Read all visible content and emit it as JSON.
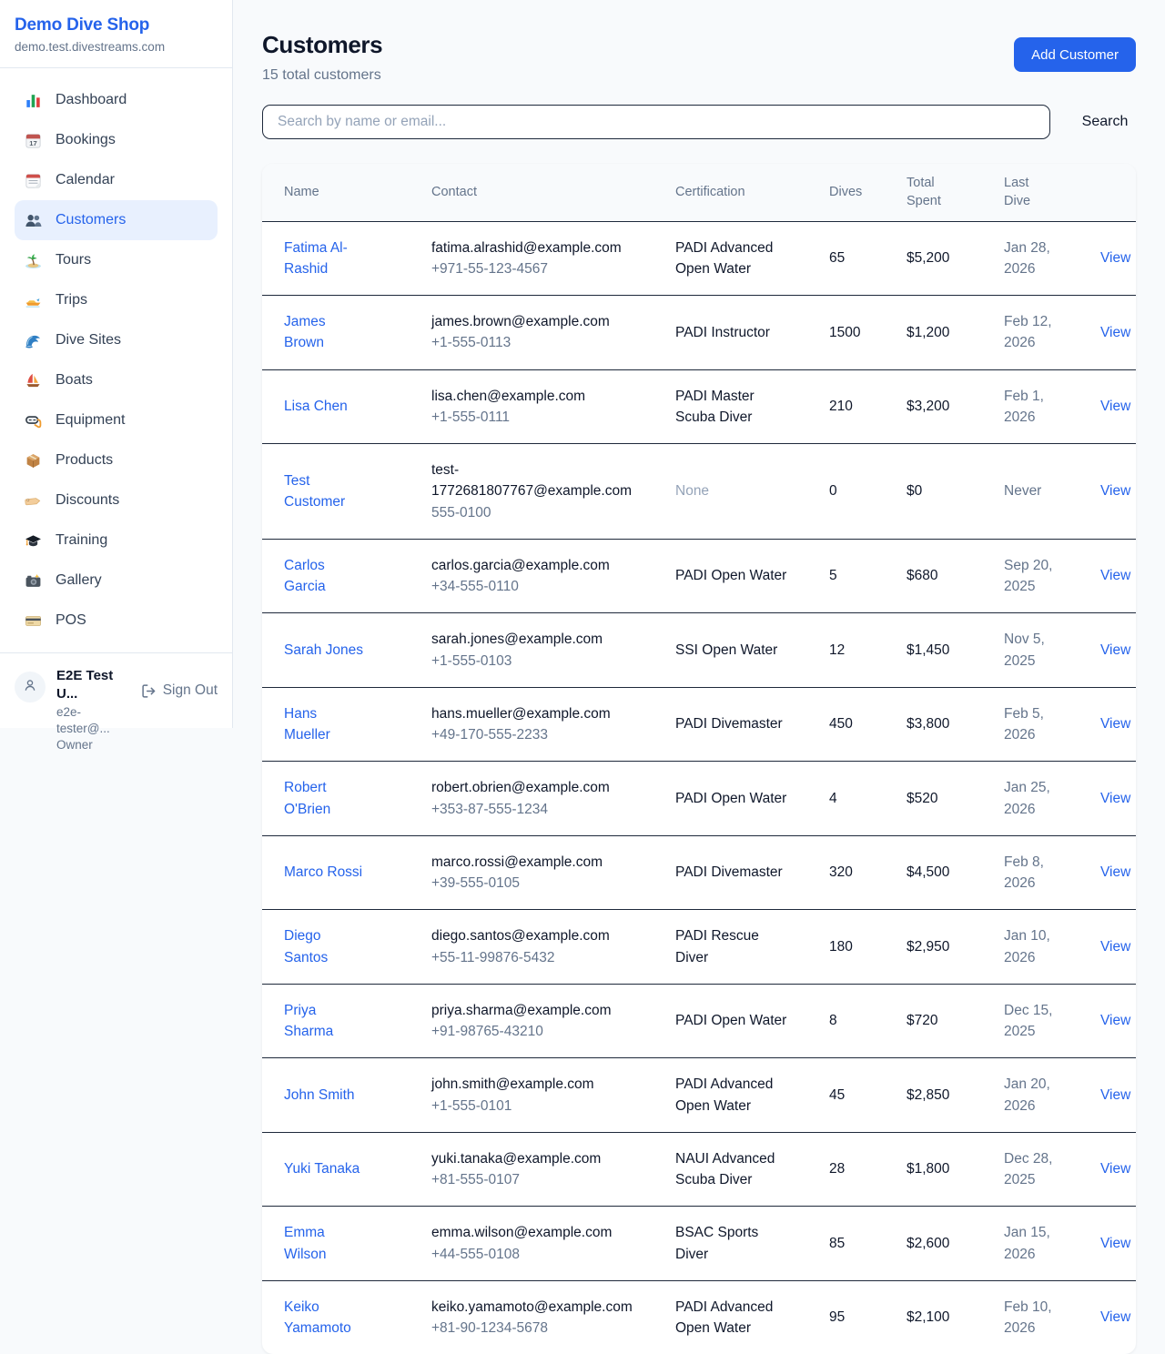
{
  "sidebar": {
    "shop_name": "Demo Dive Shop",
    "shop_domain": "demo.test.divestreams.com",
    "items": [
      {
        "label": "Dashboard",
        "icon": "dashboard-icon",
        "active": false
      },
      {
        "label": "Bookings",
        "icon": "bookings-calendar-icon",
        "active": false
      },
      {
        "label": "Calendar",
        "icon": "calendar-icon",
        "active": false
      },
      {
        "label": "Customers",
        "icon": "customers-icon",
        "active": true
      },
      {
        "label": "Tours",
        "icon": "tours-island-icon",
        "active": false
      },
      {
        "label": "Trips",
        "icon": "trips-boat-icon",
        "active": false
      },
      {
        "label": "Dive Sites",
        "icon": "dive-sites-wave-icon",
        "active": false
      },
      {
        "label": "Boats",
        "icon": "boats-sailboat-icon",
        "active": false
      },
      {
        "label": "Equipment",
        "icon": "equipment-mask-icon",
        "active": false
      },
      {
        "label": "Products",
        "icon": "products-box-icon",
        "active": false
      },
      {
        "label": "Discounts",
        "icon": "discounts-tag-icon",
        "active": false
      },
      {
        "label": "Training",
        "icon": "training-cap-icon",
        "active": false
      },
      {
        "label": "Gallery",
        "icon": "gallery-camera-icon",
        "active": false
      },
      {
        "label": "POS",
        "icon": "pos-card-icon",
        "active": false
      }
    ],
    "user": {
      "name": "E2E Test U...",
      "email": "e2e-tester@...",
      "role": "Owner",
      "sign_out_label": "Sign Out"
    }
  },
  "header": {
    "title": "Customers",
    "subtitle": "15 total customers",
    "add_button_label": "Add Customer"
  },
  "search": {
    "placeholder": "Search by name or email...",
    "button_label": "Search"
  },
  "table": {
    "columns": [
      "Name",
      "Contact",
      "Certification",
      "Dives",
      "Total\nSpent",
      "Last\nDive",
      ""
    ],
    "rows": [
      {
        "name": "Fatima Al-\nRashid",
        "email": "fatima.alrashid@example.com",
        "phone": "+971-55-123-4567",
        "certification": "PADI Advanced\nOpen Water",
        "dives": "65",
        "total_spent": "$5,200",
        "last_dive": "Jan 28,\n2026",
        "action": "View"
      },
      {
        "name": "James\nBrown",
        "email": "james.brown@example.com",
        "phone": "+1-555-0113",
        "certification": "PADI Instructor",
        "dives": "1500",
        "total_spent": "$1,200",
        "last_dive": "Feb 12,\n2026",
        "action": "View"
      },
      {
        "name": "Lisa Chen",
        "email": "lisa.chen@example.com",
        "phone": "+1-555-0111",
        "certification": "PADI Master\nScuba Diver",
        "dives": "210",
        "total_spent": "$3,200",
        "last_dive": "Feb 1,\n2026",
        "action": "View"
      },
      {
        "name": "Test\nCustomer",
        "email": "test-\n1772681807767@example.com",
        "phone": "555-0100",
        "certification": "None",
        "dives": "0",
        "total_spent": "$0",
        "last_dive": "Never",
        "action": "View"
      },
      {
        "name": "Carlos\nGarcia",
        "email": "carlos.garcia@example.com",
        "phone": "+34-555-0110",
        "certification": "PADI Open Water",
        "dives": "5",
        "total_spent": "$680",
        "last_dive": "Sep 20,\n2025",
        "action": "View"
      },
      {
        "name": "Sarah Jones",
        "email": "sarah.jones@example.com",
        "phone": "+1-555-0103",
        "certification": "SSI Open Water",
        "dives": "12",
        "total_spent": "$1,450",
        "last_dive": "Nov 5,\n2025",
        "action": "View"
      },
      {
        "name": "Hans\nMueller",
        "email": "hans.mueller@example.com",
        "phone": "+49-170-555-2233",
        "certification": "PADI Divemaster",
        "dives": "450",
        "total_spent": "$3,800",
        "last_dive": "Feb 5,\n2026",
        "action": "View"
      },
      {
        "name": "Robert\nO'Brien",
        "email": "robert.obrien@example.com",
        "phone": "+353-87-555-1234",
        "certification": "PADI Open Water",
        "dives": "4",
        "total_spent": "$520",
        "last_dive": "Jan 25,\n2026",
        "action": "View"
      },
      {
        "name": "Marco Rossi",
        "email": "marco.rossi@example.com",
        "phone": "+39-555-0105",
        "certification": "PADI Divemaster",
        "dives": "320",
        "total_spent": "$4,500",
        "last_dive": "Feb 8,\n2026",
        "action": "View"
      },
      {
        "name": "Diego\nSantos",
        "email": "diego.santos@example.com",
        "phone": "+55-11-99876-5432",
        "certification": "PADI Rescue\nDiver",
        "dives": "180",
        "total_spent": "$2,950",
        "last_dive": "Jan 10,\n2026",
        "action": "View"
      },
      {
        "name": "Priya\nSharma",
        "email": "priya.sharma@example.com",
        "phone": "+91-98765-43210",
        "certification": "PADI Open Water",
        "dives": "8",
        "total_spent": "$720",
        "last_dive": "Dec 15,\n2025",
        "action": "View"
      },
      {
        "name": "John Smith",
        "email": "john.smith@example.com",
        "phone": "+1-555-0101",
        "certification": "PADI Advanced\nOpen Water",
        "dives": "45",
        "total_spent": "$2,850",
        "last_dive": "Jan 20,\n2026",
        "action": "View"
      },
      {
        "name": "Yuki Tanaka",
        "email": "yuki.tanaka@example.com",
        "phone": "+81-555-0107",
        "certification": "NAUI Advanced\nScuba Diver",
        "dives": "28",
        "total_spent": "$1,800",
        "last_dive": "Dec 28,\n2025",
        "action": "View"
      },
      {
        "name": "Emma\nWilson",
        "email": "emma.wilson@example.com",
        "phone": "+44-555-0108",
        "certification": "BSAC Sports\nDiver",
        "dives": "85",
        "total_spent": "$2,600",
        "last_dive": "Jan 15,\n2026",
        "action": "View"
      },
      {
        "name": "Keiko\nYamamoto",
        "email": "keiko.yamamoto@example.com",
        "phone": "+81-90-1234-5678",
        "certification": "PADI Advanced\nOpen Water",
        "dives": "95",
        "total_spent": "$2,100",
        "last_dive": "Feb 10,\n2026",
        "action": "View"
      }
    ]
  },
  "colors": {
    "accent": "#2563eb",
    "active_nav_bg": "#e8f0fe",
    "page_bg": "#f8fafc",
    "row_border": "#1e293b",
    "muted_text": "#64748b",
    "placeholder_text": "#94a3b8"
  }
}
